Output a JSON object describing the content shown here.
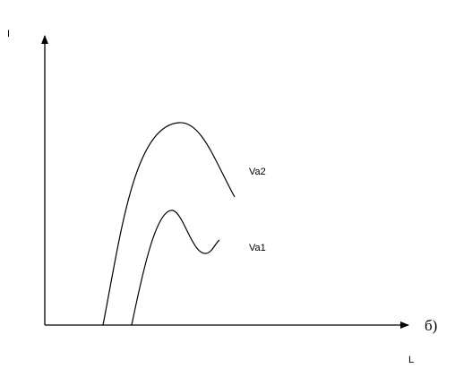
{
  "axes": {
    "y_label": "I",
    "x_label": "L"
  },
  "curves": [
    {
      "label": "Va2"
    },
    {
      "label": "Va1"
    }
  ],
  "panel_label": "б)"
}
